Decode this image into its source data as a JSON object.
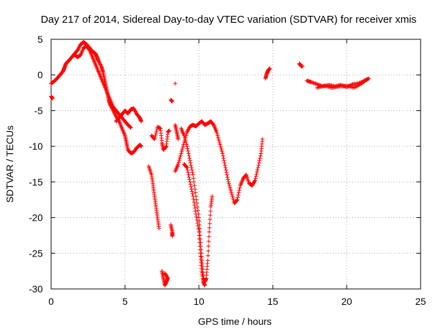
{
  "chart_data": {
    "type": "scatter",
    "title": "Day 217 of 2014, Sidereal Day-to-day VTEC variation (SDTVAR) for receiver xmis",
    "xlabel": "GPS time / hours",
    "ylabel": "SDTVAR / TECUs",
    "xlim": [
      0,
      25
    ],
    "ylim": [
      -30,
      5
    ],
    "xticks": [
      "0",
      "5",
      "10",
      "15",
      "20",
      "25"
    ],
    "yticks": [
      "5",
      "0",
      "-5",
      "-10",
      "-15",
      "-20",
      "-25",
      "-30"
    ],
    "xtick_values": [
      0,
      5,
      10,
      15,
      20,
      25
    ],
    "ytick_values": [
      5,
      0,
      -5,
      -10,
      -15,
      -20,
      -25,
      -30
    ],
    "grid": true,
    "marker": "+",
    "series": [
      {
        "color": "#ff0000",
        "segments": [
          [
            [
              0,
              -1.2
            ],
            [
              0.2,
              -0.9
            ],
            [
              0.4,
              -0.5
            ],
            [
              0.6,
              0
            ],
            [
              0.8,
              0.5
            ],
            [
              0.9,
              1
            ],
            [
              1.0,
              1.6
            ],
            [
              1.2,
              2
            ],
            [
              1.4,
              2.5
            ],
            [
              1.6,
              3
            ],
            [
              1.8,
              3.5
            ],
            [
              2.0,
              4.3
            ],
            [
              2.2,
              4.6
            ],
            [
              2.4,
              4.3
            ],
            [
              2.6,
              3.8
            ],
            [
              2.8,
              3.3
            ],
            [
              3.0,
              3.0
            ],
            [
              3.1,
              2.5
            ],
            [
              3.2,
              2
            ],
            [
              3.4,
              1.2
            ],
            [
              3.5,
              0.5
            ],
            [
              3.6,
              -0.5
            ],
            [
              3.7,
              -1.5
            ],
            [
              3.8,
              -2.5
            ],
            [
              3.9,
              -3.5
            ],
            [
              4.0,
              -4.2
            ],
            [
              4.2,
              -5
            ],
            [
              4.4,
              -5.8
            ],
            [
              4.6,
              -6.5
            ],
            [
              4.8,
              -7.5
            ],
            [
              5.0,
              -8.5
            ],
            [
              5.1,
              -9.5
            ],
            [
              5.2,
              -10.5
            ],
            [
              5.4,
              -11
            ],
            [
              5.6,
              -10.8
            ],
            [
              5.8,
              -10.2
            ],
            [
              6.0,
              -9.8
            ],
            [
              6.1,
              -10
            ]
          ],
          [
            [
              1.6,
              2.8
            ],
            [
              1.8,
              2.5
            ],
            [
              2.0,
              2.8
            ],
            [
              2.2,
              3.8
            ],
            [
              2.4,
              4.1
            ],
            [
              2.6,
              3.5
            ],
            [
              2.8,
              2.5
            ],
            [
              3.0,
              1.5
            ],
            [
              3.2,
              0.5
            ],
            [
              3.4,
              -0.5
            ],
            [
              3.6,
              -1.5
            ],
            [
              3.8,
              -2.5
            ],
            [
              4.0,
              -3.5
            ],
            [
              4.2,
              -4.5
            ],
            [
              4.4,
              -5
            ],
            [
              4.6,
              -5.5
            ],
            [
              4.8,
              -6
            ],
            [
              5.0,
              -6.5
            ],
            [
              5.2,
              -7
            ],
            [
              5.4,
              -7.4
            ]
          ],
          [
            [
              4.4,
              -6.5
            ],
            [
              4.6,
              -6
            ],
            [
              4.8,
              -5.5
            ],
            [
              5.0,
              -5
            ],
            [
              5.2,
              -5.4
            ],
            [
              5.4,
              -4.8
            ],
            [
              5.6,
              -4.7
            ],
            [
              5.8,
              -5.5
            ],
            [
              6.0,
              -6
            ],
            [
              6.1,
              -6.5
            ]
          ],
          [
            [
              6.6,
              -12.8
            ],
            [
              6.8,
              -14
            ],
            [
              6.9,
              -15.5
            ],
            [
              7.0,
              -17
            ],
            [
              7.1,
              -18.5
            ],
            [
              7.2,
              -20
            ],
            [
              7.3,
              -21.5
            ]
          ],
          [
            [
              6.8,
              -8.5
            ],
            [
              7.0,
              -9
            ],
            [
              7.2,
              -7.3
            ],
            [
              7.4,
              -7.5
            ],
            [
              7.5,
              -9.5
            ],
            [
              7.6,
              -10.5
            ],
            [
              7.8,
              -10
            ],
            [
              7.9,
              -8
            ],
            [
              8.0,
              -7.8
            ]
          ],
          [
            [
              7.5,
              -27.5
            ],
            [
              7.6,
              -28.5
            ],
            [
              7.7,
              -29.5
            ],
            [
              7.8,
              -29
            ],
            [
              7.9,
              -28.5
            ],
            [
              7.7,
              -27.8
            ]
          ],
          [
            [
              8.1,
              -3.5
            ],
            [
              8.2,
              -3.7
            ]
          ],
          [
            [
              8.1,
              -21
            ],
            [
              8.2,
              -22
            ],
            [
              8.2,
              -22.6
            ]
          ],
          [
            [
              8.4,
              -1.2
            ]
          ],
          [
            [
              8.4,
              -7
            ],
            [
              8.5,
              -8
            ],
            [
              8.6,
              -9
            ]
          ],
          [
            [
              8.4,
              -13.5
            ],
            [
              8.6,
              -12.5
            ],
            [
              8.8,
              -11
            ],
            [
              9.0,
              -9.5
            ],
            [
              9.2,
              -8
            ],
            [
              9.4,
              -7.2
            ],
            [
              9.6,
              -7
            ],
            [
              9.8,
              -7.2
            ],
            [
              10.0,
              -6.8
            ],
            [
              10.2,
              -6.5
            ],
            [
              10.4,
              -7
            ],
            [
              10.6,
              -6.8
            ],
            [
              10.8,
              -6.5
            ],
            [
              11.0,
              -7
            ],
            [
              11.2,
              -8
            ],
            [
              11.4,
              -9.5
            ],
            [
              11.6,
              -11
            ],
            [
              11.8,
              -13
            ],
            [
              12.0,
              -15
            ],
            [
              12.2,
              -16.5
            ],
            [
              12.4,
              -18
            ],
            [
              12.6,
              -17.5
            ],
            [
              12.8,
              -15.5
            ],
            [
              13.0,
              -14.5
            ],
            [
              13.2,
              -14
            ],
            [
              13.4,
              -15.2
            ],
            [
              13.6,
              -15.5
            ],
            [
              13.8,
              -14.8
            ],
            [
              14.0,
              -13
            ],
            [
              14.2,
              -11
            ],
            [
              14.3,
              -9
            ]
          ],
          [
            [
              8.8,
              -7.5
            ],
            [
              9.0,
              -8.5
            ],
            [
              9.2,
              -10
            ],
            [
              9.4,
              -12
            ],
            [
              9.6,
              -14
            ],
            [
              9.8,
              -17
            ],
            [
              10.0,
              -20
            ],
            [
              10.1,
              -23
            ],
            [
              10.2,
              -26
            ],
            [
              10.3,
              -28.5
            ],
            [
              10.4,
              -29
            ],
            [
              10.5,
              -28.5
            ],
            [
              10.6,
              -26
            ],
            [
              10.7,
              -22
            ],
            [
              10.8,
              -18.5
            ],
            [
              10.9,
              -17
            ]
          ],
          [
            [
              9.0,
              -12.5
            ],
            [
              9.2,
              -13
            ],
            [
              9.4,
              -15
            ],
            [
              9.6,
              -17
            ],
            [
              9.8,
              -19.5
            ],
            [
              10.0,
              -22
            ],
            [
              10.1,
              -25
            ],
            [
              10.2,
              -27.5
            ],
            [
              10.3,
              -29
            ],
            [
              10.4,
              -29.5
            ]
          ],
          [
            [
              14.5,
              -0.5
            ],
            [
              14.6,
              0.2
            ],
            [
              14.7,
              0.7
            ],
            [
              14.8,
              0.9
            ]
          ],
          [
            [
              16.8,
              1.6
            ],
            [
              16.9,
              1.3
            ],
            [
              17.0,
              1.2
            ]
          ],
          [
            [
              17.3,
              -0.8
            ],
            [
              17.6,
              -1
            ],
            [
              18.0,
              -1.3
            ],
            [
              18.4,
              -1.6
            ],
            [
              18.8,
              -1.4
            ],
            [
              19.2,
              -1.6
            ],
            [
              19.6,
              -1.4
            ],
            [
              20.0,
              -1.7
            ],
            [
              20.4,
              -1.3
            ],
            [
              20.8,
              -1.2
            ],
            [
              21.2,
              -0.8
            ],
            [
              21.5,
              -0.5
            ]
          ],
          [
            [
              18.0,
              -1.8
            ],
            [
              18.5,
              -1.5
            ],
            [
              19.0,
              -1.8
            ],
            [
              19.5,
              -1.6
            ],
            [
              20.0,
              -1.5
            ],
            [
              20.5,
              -1.8
            ],
            [
              21.0,
              -1.2
            ],
            [
              21.4,
              -0.6
            ]
          ],
          [
            [
              0,
              -3
            ],
            [
              0.1,
              -3.3
            ]
          ]
        ]
      }
    ]
  }
}
